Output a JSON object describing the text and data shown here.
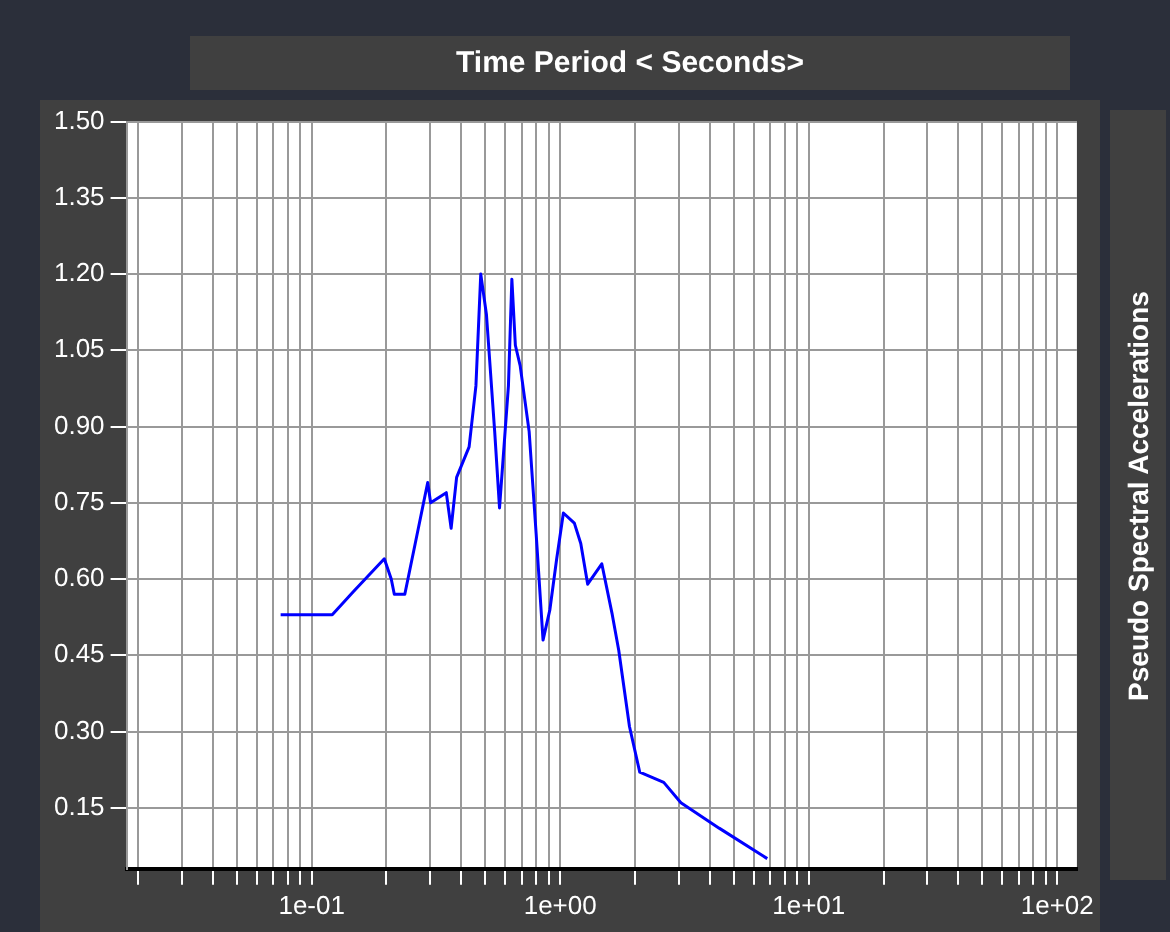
{
  "chart_data": {
    "type": "line",
    "title": "Time Period < Seconds>",
    "ylabel": "Pseudo Spectral Accelerations",
    "log": "x",
    "grid": true,
    "xlim": [
      0.018,
      120
    ],
    "ylim": [
      0.03,
      1.5
    ],
    "xticks": [
      {
        "value": 0.02,
        "label": null
      },
      {
        "value": 0.03,
        "label": null
      },
      {
        "value": 0.04,
        "label": null
      },
      {
        "value": 0.05,
        "label": null
      },
      {
        "value": 0.06,
        "label": null
      },
      {
        "value": 0.07,
        "label": null
      },
      {
        "value": 0.08,
        "label": null
      },
      {
        "value": 0.09,
        "label": null
      },
      {
        "value": 0.1,
        "label": "1e-01"
      },
      {
        "value": 0.2,
        "label": null
      },
      {
        "value": 0.3,
        "label": null
      },
      {
        "value": 0.4,
        "label": null
      },
      {
        "value": 0.5,
        "label": null
      },
      {
        "value": 0.6,
        "label": null
      },
      {
        "value": 0.7,
        "label": null
      },
      {
        "value": 0.8,
        "label": null
      },
      {
        "value": 0.9,
        "label": null
      },
      {
        "value": 1,
        "label": "1e+00"
      },
      {
        "value": 2,
        "label": null
      },
      {
        "value": 3,
        "label": null
      },
      {
        "value": 4,
        "label": null
      },
      {
        "value": 5,
        "label": null
      },
      {
        "value": 6,
        "label": null
      },
      {
        "value": 7,
        "label": null
      },
      {
        "value": 8,
        "label": null
      },
      {
        "value": 9,
        "label": null
      },
      {
        "value": 10,
        "label": "1e+01"
      },
      {
        "value": 20,
        "label": null
      },
      {
        "value": 30,
        "label": null
      },
      {
        "value": 40,
        "label": null
      },
      {
        "value": 50,
        "label": null
      },
      {
        "value": 60,
        "label": null
      },
      {
        "value": 70,
        "label": null
      },
      {
        "value": 80,
        "label": null
      },
      {
        "value": 90,
        "label": null
      },
      {
        "value": 100,
        "label": "1e+02"
      }
    ],
    "yticks": [
      0.15,
      {
        "value": 0.3,
        "label": "0.30"
      },
      0.45,
      {
        "value": 0.6,
        "label": "0.60"
      },
      0.75,
      {
        "value": 0.9,
        "label": "0.90"
      },
      1.05,
      {
        "value": 1.2,
        "label": "1.20"
      },
      1.35,
      {
        "value": 1.5,
        "label": "1.50"
      }
    ],
    "series": [
      {
        "color": "#0000ff",
        "x": [
          0.075,
          0.121,
          0.147,
          0.196,
          0.209,
          0.215,
          0.237,
          0.261,
          0.293,
          0.301,
          0.348,
          0.364,
          0.383,
          0.43,
          0.458,
          0.479,
          0.505,
          0.545,
          0.57,
          0.619,
          0.639,
          0.66,
          0.69,
          0.75,
          0.8,
          0.853,
          0.909,
          0.968,
          1.03,
          1.14,
          1.21,
          1.29,
          1.47,
          1.62,
          1.72,
          1.9,
          2.09,
          2.61,
          3.06,
          4.36,
          6.81
        ],
        "values": [
          0.53,
          0.53,
          0.575,
          0.64,
          0.6,
          0.57,
          0.57,
          0.67,
          0.79,
          0.75,
          0.77,
          0.7,
          0.8,
          0.86,
          0.98,
          1.2,
          1.12,
          0.89,
          0.74,
          0.98,
          1.19,
          1.06,
          1.02,
          0.89,
          0.69,
          0.48,
          0.54,
          0.64,
          0.73,
          0.71,
          0.67,
          0.59,
          0.63,
          0.53,
          0.46,
          0.31,
          0.22,
          0.2,
          0.16,
          0.11,
          0.05
        ]
      }
    ]
  }
}
